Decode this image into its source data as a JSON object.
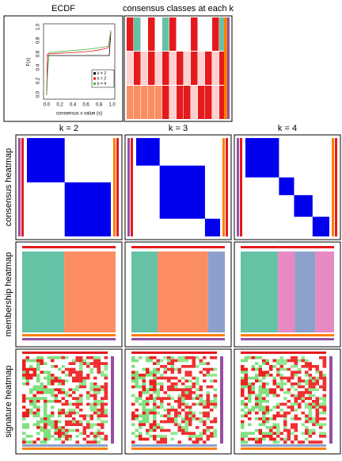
{
  "header": {
    "ecdf_title": "ECDF",
    "classes_title": "consensus classes at each k"
  },
  "ecdf": {
    "x_label": "consensus x value (x)",
    "y_label": "F(x)",
    "x_ticks": [
      "0.0",
      "0.2",
      "0.4",
      "0.6",
      "0.8",
      "1.0"
    ],
    "y_ticks": [
      "0.0",
      "0.2",
      "0.4",
      "0.6",
      "0.8",
      "1.0"
    ],
    "legend": [
      "k = 2",
      "k = 3",
      "k = 4"
    ]
  },
  "columns": [
    "k = 2",
    "k = 3",
    "k = 4"
  ],
  "rows": [
    "consensus heatmap",
    "membership heatmap",
    "signature heatmap"
  ]
}
